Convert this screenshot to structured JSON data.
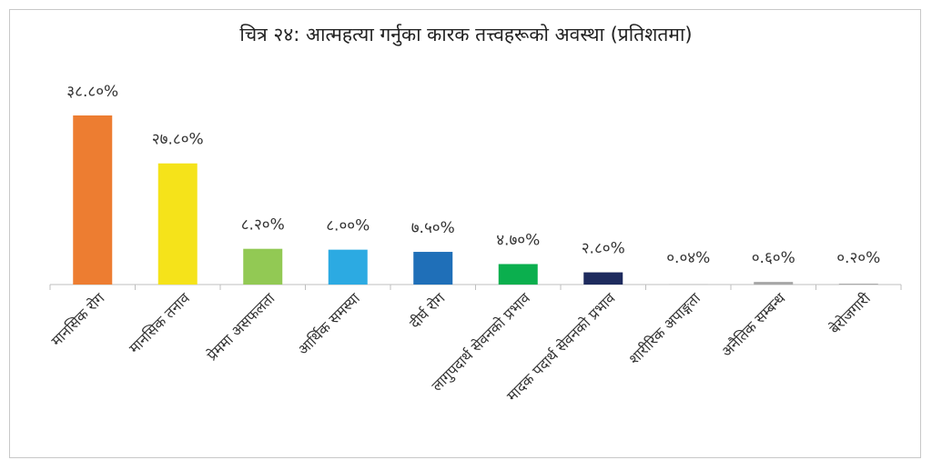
{
  "chart_data": {
    "type": "bar",
    "title": "चित्र २४: आत्महत्या गर्नुका कारक तत्त्वहरूको अवस्था (प्रतिशतमा)",
    "xlabel": "",
    "ylabel": "",
    "ylim": [
      0,
      40
    ],
    "grid": false,
    "legend": "none",
    "categories": [
      "मानसिक रोग",
      "मानसिक तनाव",
      "प्रेममा असफलता",
      "आर्थिक समस्या",
      "दीर्घ रोग",
      "लागुपदार्थ सेवनको प्रभाव",
      "मादक पदार्थ सेवनको प्रभाव",
      "शारीरिक अपाङ्गता",
      "अनैतिक सम्बन्ध",
      "बेरोजगारी"
    ],
    "values": [
      38.8,
      27.8,
      8.2,
      8.0,
      7.5,
      4.7,
      2.8,
      0.04,
      0.6,
      0.2
    ],
    "value_labels": [
      "३८.८०%",
      "२७.८०%",
      "८.२०%",
      "८.००%",
      "७.५०%",
      "४.७०%",
      "२.८०%",
      "०.०४%",
      "०.६०%",
      "०.२०%"
    ],
    "colors": [
      "#ED7D31",
      "#F5E31A",
      "#92C954",
      "#2CAAE2",
      "#1F6FB8",
      "#0BAF4E",
      "#1E2B5E",
      "#A6A6A6",
      "#A6A6A6",
      "#A6A6A6"
    ],
    "axis_color": "#bfbfbf"
  }
}
